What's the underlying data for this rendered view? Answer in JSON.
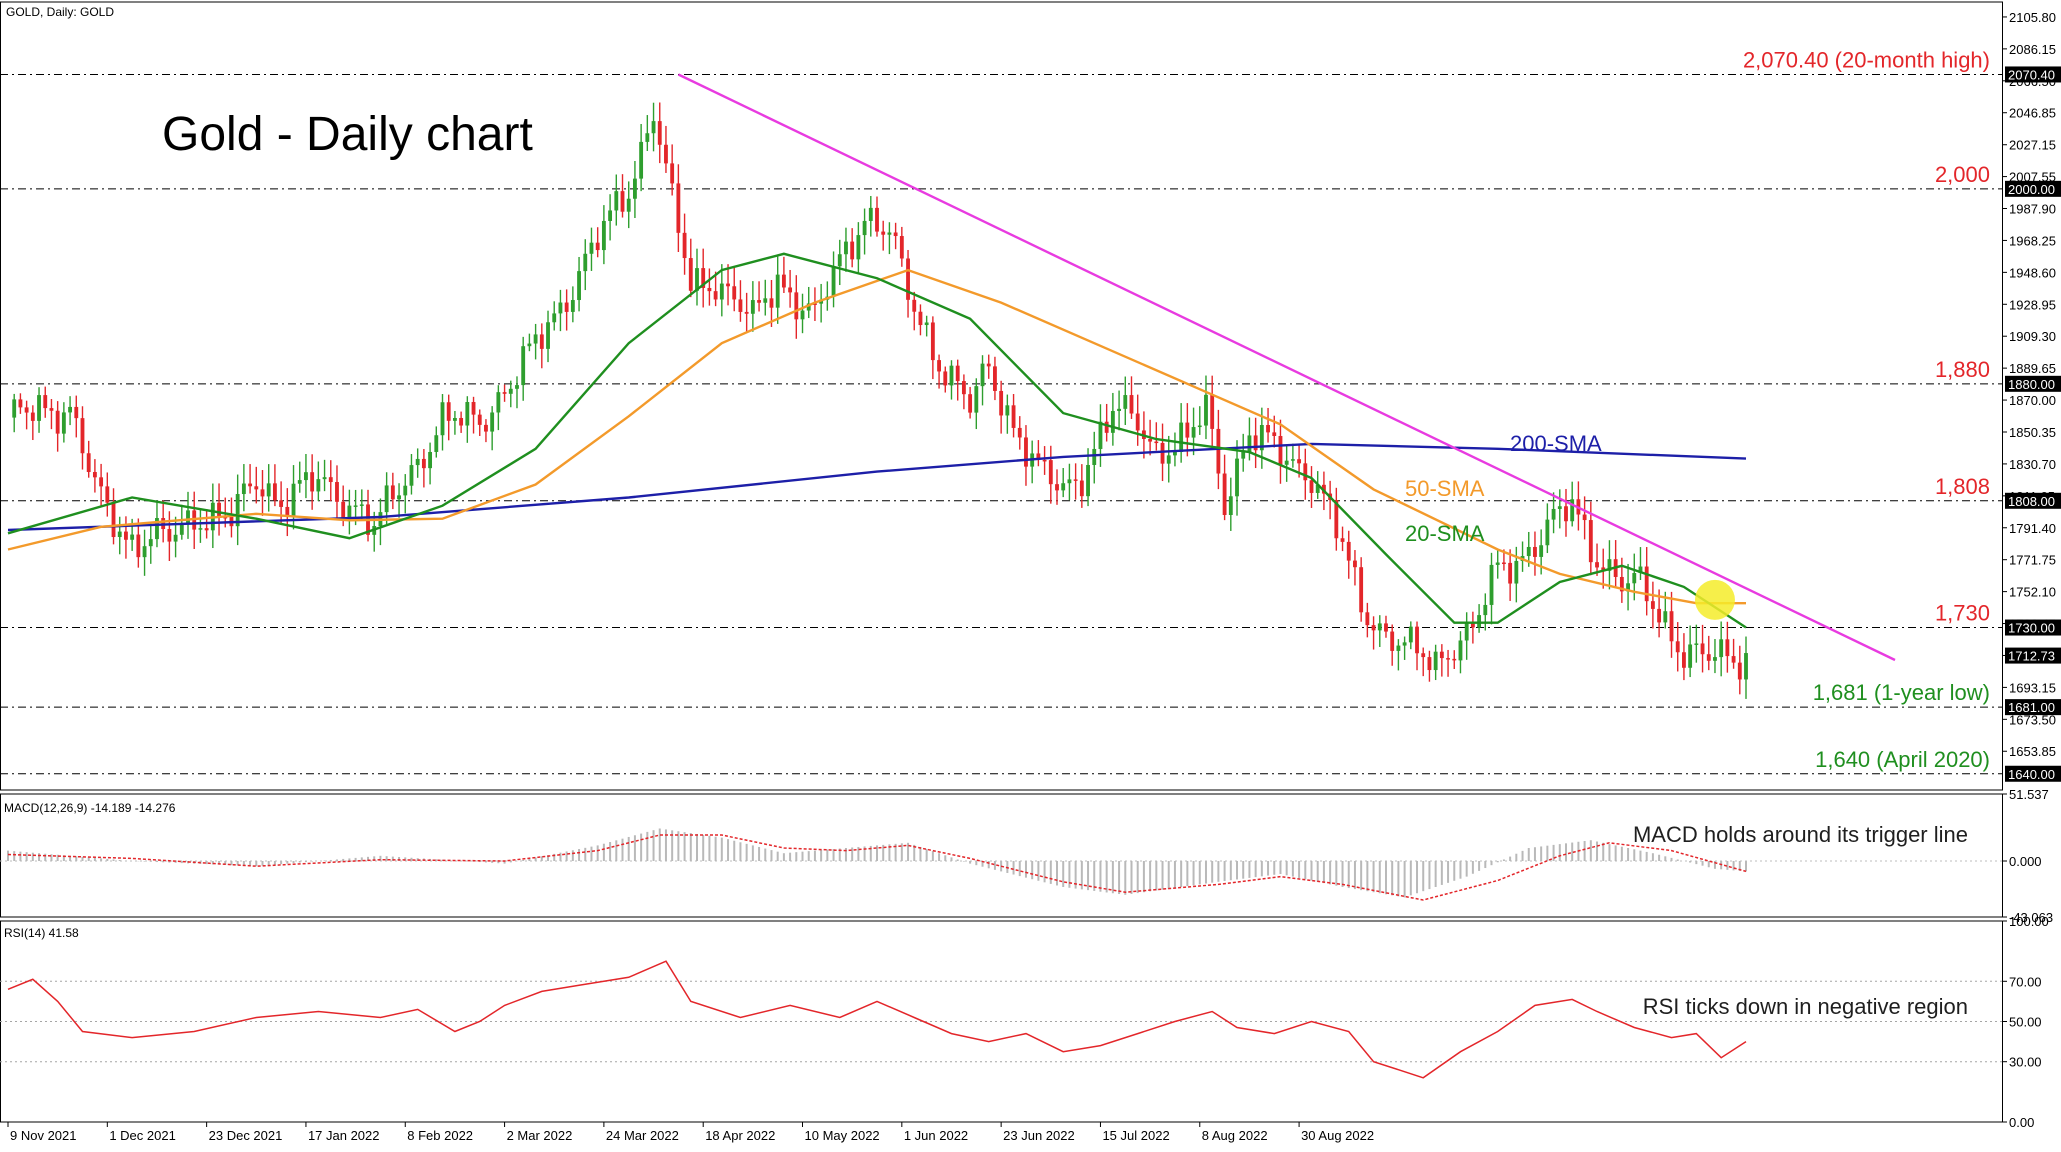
{
  "header": {
    "symbol_label": "GOLD, Daily:  GOLD",
    "chart_title": "Gold - Daily chart"
  },
  "colors": {
    "bull": "#2e9e2e",
    "bear": "#e3262a",
    "sma20": "#1f8f1f",
    "sma50": "#f39a2b",
    "sma200": "#1d1fa8",
    "trendline": "#e83be0",
    "level_red": "#e3262a",
    "level_green": "#1f8f1f",
    "macd_signal": "#e3262a",
    "macd_hist": "#b9b9b9",
    "rsi": "#e3262a",
    "highlight": "#f4ec2a"
  },
  "price_axis": {
    "min": 1630,
    "max": 2115,
    "ticks": [
      "2105.80",
      "2086.15",
      "2066.50",
      "2046.85",
      "2027.15",
      "2007.55",
      "1987.90",
      "1968.25",
      "1948.60",
      "1928.95",
      "1909.30",
      "1889.65",
      "1870.00",
      "1850.35",
      "1830.70",
      "1811.05",
      "1791.40",
      "1771.75",
      "1752.10",
      "1732.45",
      "1712.80",
      "1693.15",
      "1673.50",
      "1653.85"
    ],
    "boxed": [
      {
        "label": "2070.40",
        "value": 2070.4
      },
      {
        "label": "2000.00",
        "value": 2000.0
      },
      {
        "label": "1880.00",
        "value": 1880.0
      },
      {
        "label": "1808.00",
        "value": 1808.0
      },
      {
        "label": "1730.00",
        "value": 1730.0
      },
      {
        "label": "1712.73",
        "value": 1712.73
      },
      {
        "label": "1681.00",
        "value": 1681.0
      },
      {
        "label": "1640.00",
        "value": 1640.0
      }
    ]
  },
  "levels": [
    {
      "value": 2070.4,
      "label": "2,070.40 (20-month high)",
      "color": "red"
    },
    {
      "value": 2000.0,
      "label": "2,000",
      "color": "red"
    },
    {
      "value": 1880.0,
      "label": "1,880",
      "color": "red"
    },
    {
      "value": 1808.0,
      "label": "1,808",
      "color": "red"
    },
    {
      "value": 1730.0,
      "label": "1,730",
      "color": "red"
    },
    {
      "value": 1681.0,
      "label": "1,681 (1-year low)",
      "color": "green"
    },
    {
      "value": 1640.0,
      "label": "1,640 (April 2020)",
      "color": "green"
    }
  ],
  "annotations": {
    "sma200": "200-SMA",
    "sma50": "50-SMA",
    "sma20": "20-SMA",
    "macd_note": "MACD holds around its trigger line",
    "rsi_note": "RSI ticks down in negative region"
  },
  "macd": {
    "header": "MACD(12,26,9) -14.189 -14.276",
    "ticks": [
      "51.537",
      "0.000",
      "-43.063"
    ],
    "min": -43.063,
    "max": 51.537
  },
  "rsi": {
    "header": "RSI(14) 41.58",
    "ticks": [
      "100.00",
      "70.00",
      "50.00",
      "30.00",
      "0.00"
    ],
    "dotted_levels": [
      70,
      50,
      30
    ]
  },
  "time_axis": {
    "labels": [
      "9 Nov 2021",
      "1 Dec 2021",
      "23 Dec 2021",
      "17 Jan 2022",
      "8 Feb 2022",
      "2 Mar 2022",
      "24 Mar 2022",
      "18 Apr 2022",
      "10 May 2022",
      "1 Jun 2022",
      "23 Jun 2022",
      "15 Jul 2022",
      "8 Aug 2022",
      "30 Aug 2022"
    ]
  },
  "chart_data": {
    "type": "candlestick",
    "title": "Gold - Daily chart",
    "candle_anchors": [
      [
        0,
        1855
      ],
      [
        5,
        1868
      ],
      [
        10,
        1862
      ],
      [
        14,
        1815
      ],
      [
        20,
        1782
      ],
      [
        26,
        1785
      ],
      [
        30,
        1800
      ],
      [
        36,
        1796
      ],
      [
        40,
        1822
      ],
      [
        44,
        1808
      ],
      [
        50,
        1820
      ],
      [
        56,
        1805
      ],
      [
        59,
        1790
      ],
      [
        64,
        1822
      ],
      [
        70,
        1856
      ],
      [
        76,
        1858
      ],
      [
        82,
        1885
      ],
      [
        88,
        1922
      ],
      [
        95,
        1968
      ],
      [
        100,
        2000
      ],
      [
        104,
        2050
      ],
      [
        107,
        1990
      ],
      [
        110,
        1940
      ],
      [
        114,
        1945
      ],
      [
        120,
        1918
      ],
      [
        124,
        1945
      ],
      [
        130,
        1920
      ],
      [
        134,
        1955
      ],
      [
        138,
        1985
      ],
      [
        142,
        1972
      ],
      [
        145,
        1935
      ],
      [
        150,
        1895
      ],
      [
        155,
        1865
      ],
      [
        158,
        1890
      ],
      [
        162,
        1855
      ],
      [
        166,
        1825
      ],
      [
        170,
        1815
      ],
      [
        173,
        1826
      ],
      [
        178,
        1862
      ],
      [
        182,
        1858
      ],
      [
        185,
        1840
      ],
      [
        190,
        1843
      ],
      [
        193,
        1866
      ],
      [
        196,
        1810
      ],
      [
        200,
        1848
      ],
      [
        205,
        1838
      ],
      [
        210,
        1825
      ],
      [
        214,
        1790
      ],
      [
        218,
        1745
      ],
      [
        222,
        1726
      ],
      [
        226,
        1715
      ],
      [
        230,
        1708
      ],
      [
        233,
        1722
      ],
      [
        236,
        1728
      ],
      [
        240,
        1765
      ],
      [
        244,
        1775
      ],
      [
        248,
        1790
      ],
      [
        252,
        1805
      ],
      [
        256,
        1775
      ],
      [
        260,
        1756
      ],
      [
        263,
        1755
      ],
      [
        266,
        1740
      ],
      [
        270,
        1715
      ],
      [
        273,
        1710
      ],
      [
        276,
        1712
      ],
      [
        280,
        1713
      ]
    ],
    "sma20": [
      [
        0,
        1788
      ],
      [
        20,
        1810
      ],
      [
        40,
        1797
      ],
      [
        55,
        1785
      ],
      [
        70,
        1805
      ],
      [
        85,
        1840
      ],
      [
        100,
        1905
      ],
      [
        115,
        1950
      ],
      [
        125,
        1960
      ],
      [
        140,
        1945
      ],
      [
        155,
        1920
      ],
      [
        170,
        1862
      ],
      [
        185,
        1846
      ],
      [
        200,
        1838
      ],
      [
        210,
        1822
      ],
      [
        222,
        1775
      ],
      [
        233,
        1733
      ],
      [
        240,
        1733
      ],
      [
        250,
        1758
      ],
      [
        260,
        1768
      ],
      [
        270,
        1755
      ],
      [
        280,
        1730
      ]
    ],
    "sma50": [
      [
        0,
        1778
      ],
      [
        15,
        1792
      ],
      [
        40,
        1800
      ],
      [
        55,
        1796
      ],
      [
        70,
        1797
      ],
      [
        85,
        1818
      ],
      [
        100,
        1860
      ],
      [
        115,
        1905
      ],
      [
        130,
        1930
      ],
      [
        145,
        1950
      ],
      [
        160,
        1930
      ],
      [
        175,
        1905
      ],
      [
        190,
        1880
      ],
      [
        205,
        1855
      ],
      [
        220,
        1815
      ],
      [
        240,
        1778
      ],
      [
        250,
        1763
      ],
      [
        262,
        1752
      ],
      [
        272,
        1745
      ],
      [
        280,
        1745
      ]
    ],
    "sma200": [
      [
        0,
        1790
      ],
      [
        60,
        1798
      ],
      [
        100,
        1810
      ],
      [
        140,
        1826
      ],
      [
        170,
        1835
      ],
      [
        210,
        1843
      ],
      [
        240,
        1840
      ],
      [
        280,
        1834
      ]
    ],
    "trendline": [
      [
        108,
        2070.4
      ],
      [
        304,
        1710
      ]
    ],
    "highlight_point": [
      275,
      1747
    ],
    "macd_hist": [
      [
        0,
        8
      ],
      [
        20,
        0
      ],
      [
        40,
        -4
      ],
      [
        60,
        4
      ],
      [
        80,
        -2
      ],
      [
        95,
        12
      ],
      [
        105,
        25
      ],
      [
        115,
        18
      ],
      [
        125,
        6
      ],
      [
        135,
        10
      ],
      [
        145,
        14
      ],
      [
        155,
        -2
      ],
      [
        170,
        -20
      ],
      [
        180,
        -26
      ],
      [
        195,
        -16
      ],
      [
        205,
        -10
      ],
      [
        215,
        -20
      ],
      [
        225,
        -28
      ],
      [
        235,
        -12
      ],
      [
        245,
        10
      ],
      [
        255,
        16
      ],
      [
        265,
        6
      ],
      [
        275,
        -6
      ],
      [
        280,
        -8
      ]
    ],
    "macd_signal": [
      [
        0,
        5
      ],
      [
        20,
        2
      ],
      [
        40,
        -4
      ],
      [
        60,
        1
      ],
      [
        80,
        0
      ],
      [
        95,
        8
      ],
      [
        105,
        20
      ],
      [
        115,
        20
      ],
      [
        125,
        10
      ],
      [
        135,
        8
      ],
      [
        145,
        12
      ],
      [
        155,
        2
      ],
      [
        170,
        -16
      ],
      [
        180,
        -24
      ],
      [
        195,
        -18
      ],
      [
        205,
        -12
      ],
      [
        215,
        -18
      ],
      [
        228,
        -30
      ],
      [
        240,
        -15
      ],
      [
        250,
        4
      ],
      [
        258,
        14
      ],
      [
        268,
        8
      ],
      [
        280,
        -8
      ]
    ],
    "rsi": [
      [
        0,
        66
      ],
      [
        4,
        71
      ],
      [
        8,
        60
      ],
      [
        12,
        45
      ],
      [
        20,
        42
      ],
      [
        30,
        45
      ],
      [
        40,
        52
      ],
      [
        50,
        55
      ],
      [
        60,
        52
      ],
      [
        66,
        56
      ],
      [
        72,
        45
      ],
      [
        76,
        50
      ],
      [
        80,
        58
      ],
      [
        86,
        65
      ],
      [
        92,
        68
      ],
      [
        100,
        72
      ],
      [
        106,
        80
      ],
      [
        110,
        60
      ],
      [
        118,
        52
      ],
      [
        126,
        58
      ],
      [
        134,
        52
      ],
      [
        140,
        60
      ],
      [
        146,
        52
      ],
      [
        152,
        44
      ],
      [
        158,
        40
      ],
      [
        164,
        44
      ],
      [
        170,
        35
      ],
      [
        176,
        38
      ],
      [
        182,
        44
      ],
      [
        188,
        50
      ],
      [
        194,
        55
      ],
      [
        198,
        47
      ],
      [
        204,
        44
      ],
      [
        210,
        50
      ],
      [
        216,
        45
      ],
      [
        220,
        30
      ],
      [
        224,
        26
      ],
      [
        228,
        22
      ],
      [
        234,
        35
      ],
      [
        240,
        45
      ],
      [
        246,
        58
      ],
      [
        252,
        61
      ],
      [
        256,
        55
      ],
      [
        262,
        47
      ],
      [
        268,
        42
      ],
      [
        272,
        44
      ],
      [
        276,
        32
      ],
      [
        280,
        40
      ]
    ],
    "xlabels_index": [
      0,
      16,
      32,
      48,
      64,
      80,
      96,
      112,
      128,
      144,
      160,
      176,
      192,
      208
    ]
  }
}
